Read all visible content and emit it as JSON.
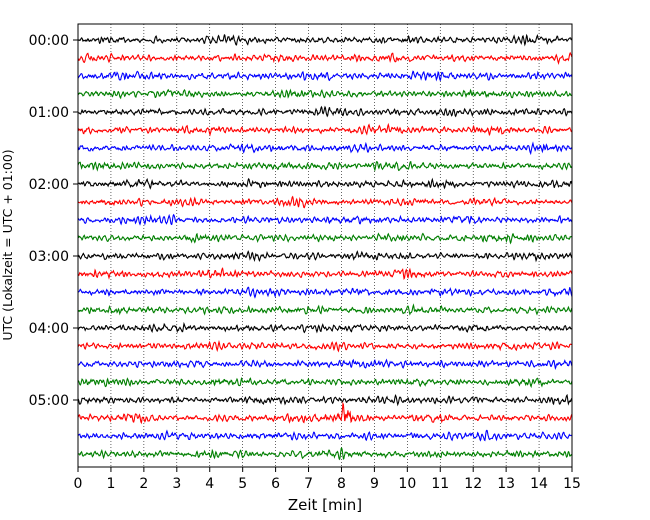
{
  "chart_data": {
    "type": "line",
    "subtype": "helicorder",
    "xlabel": "Zeit  [min]",
    "ylabel": "UTC (Lokalzeit = UTC + 01:00)",
    "xlim": [
      0,
      15
    ],
    "x_ticks": [
      0,
      1,
      2,
      3,
      4,
      5,
      6,
      7,
      8,
      9,
      10,
      11,
      12,
      13,
      14,
      15
    ],
    "y_tick_labels": [
      "00:00",
      "01:00",
      "02:00",
      "03:00",
      "04:00",
      "05:00"
    ],
    "minutes_per_trace": 15,
    "grid": "vertical dotted lines at each minute",
    "trace_color_cycle": [
      "#000000",
      "#ff0000",
      "#0000ff",
      "#007f00"
    ],
    "traces": [
      {
        "start": "00:00"
      },
      {
        "start": "00:15"
      },
      {
        "start": "00:30"
      },
      {
        "start": "00:45"
      },
      {
        "start": "01:00"
      },
      {
        "start": "01:15"
      },
      {
        "start": "01:30"
      },
      {
        "start": "01:45"
      },
      {
        "start": "02:00"
      },
      {
        "start": "02:15"
      },
      {
        "start": "02:30"
      },
      {
        "start": "02:45"
      },
      {
        "start": "03:00"
      },
      {
        "start": "03:15"
      },
      {
        "start": "03:30"
      },
      {
        "start": "03:45"
      },
      {
        "start": "04:00"
      },
      {
        "start": "04:15"
      },
      {
        "start": "04:30"
      },
      {
        "start": "04:45"
      },
      {
        "start": "05:00"
      },
      {
        "start": "05:15",
        "event_minute": 8.1
      },
      {
        "start": "05:30"
      },
      {
        "start": "05:45"
      }
    ]
  }
}
